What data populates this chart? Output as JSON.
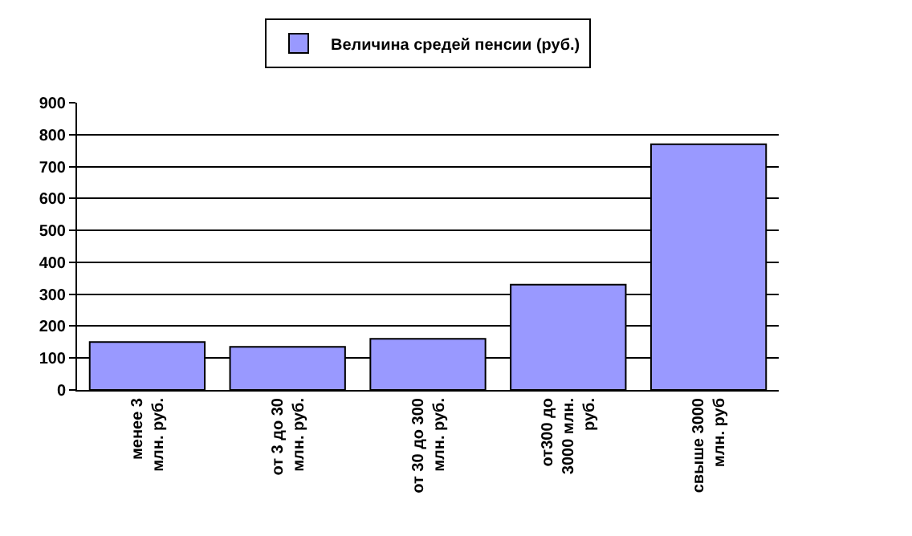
{
  "chart_data": {
    "type": "bar",
    "categories": [
      "менее 3\nмлн. руб.",
      "от 3 до 30\nмлн. руб.",
      "от 30 до 300\nмлн. руб.",
      "от300 до\n3000 млн.\nруб.",
      "свыше 3000\nмлн. руб"
    ],
    "series": [
      {
        "name": "Величина средей пенсии (руб.)",
        "color": "#9999ff",
        "values": [
          150,
          135,
          160,
          330,
          770
        ]
      }
    ],
    "ylim": [
      0,
      900
    ],
    "yticks": [
      0,
      100,
      200,
      300,
      400,
      500,
      600,
      700,
      800,
      900
    ],
    "grid": "y",
    "legend": "top"
  }
}
